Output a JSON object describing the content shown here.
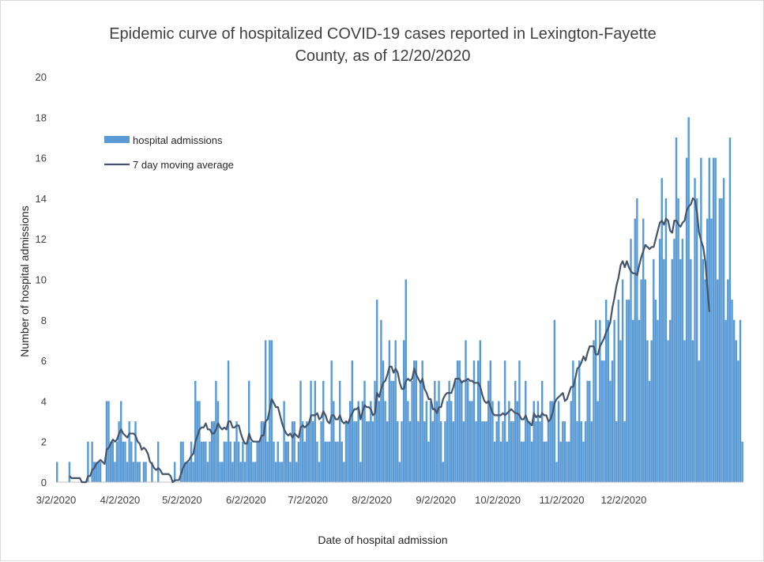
{
  "chart_data": {
    "type": "bar",
    "title_line1": "Epidemic curve of hospitalized COVID-19 cases reported in Lexington-Fayette",
    "title_line2": "County, as of 12/20/2020",
    "xlabel": "Date of hospital admission",
    "ylabel": "Number of hospital admissions",
    "ylim": [
      0,
      20
    ],
    "yticks": [
      "0",
      "2",
      "4",
      "6",
      "8",
      "10",
      "12",
      "14",
      "16",
      "18",
      "20"
    ],
    "xticks": [
      {
        "label": "3/2/2020",
        "day": 0
      },
      {
        "label": "4/2/2020",
        "day": 31
      },
      {
        "label": "5/2/2020",
        "day": 61
      },
      {
        "label": "6/2/2020",
        "day": 92
      },
      {
        "label": "7/2/2020",
        "day": 122
      },
      {
        "label": "8/2/2020",
        "day": 153
      },
      {
        "label": "9/2/2020",
        "day": 184
      },
      {
        "label": "10/2/2020",
        "day": 214
      },
      {
        "label": "11/2/2020",
        "day": 245
      },
      {
        "label": "12/2/2020",
        "day": 275
      }
    ],
    "legend": {
      "position": "top-left",
      "bar_label": "hospital admissions",
      "line_label": "7 day moving average"
    },
    "colors": {
      "bar": "#5b9bd5",
      "line": "#44546a"
    },
    "series": [
      {
        "name": "hospital admissions",
        "values": [
          1,
          0,
          0,
          0,
          0,
          0,
          1,
          0,
          0,
          0,
          0,
          0,
          0,
          0,
          0,
          2,
          0,
          2,
          1,
          1,
          1,
          1,
          0,
          0,
          4,
          4,
          2,
          2,
          1,
          2,
          3,
          4,
          2,
          2,
          1,
          3,
          2,
          1,
          3,
          1,
          1,
          0,
          1,
          1,
          0,
          0,
          1,
          0,
          0,
          2,
          0,
          0,
          0,
          0,
          0,
          0,
          0,
          1,
          0,
          0,
          2,
          2,
          1,
          1,
          1,
          2,
          1,
          5,
          4,
          4,
          2,
          2,
          2,
          1,
          2,
          3,
          3,
          5,
          4,
          1,
          1,
          2,
          2,
          6,
          2,
          1,
          2,
          3,
          2,
          1,
          2,
          1,
          2,
          5,
          2,
          1,
          1,
          2,
          2,
          3,
          3,
          7,
          2,
          7,
          7,
          2,
          1,
          2,
          1,
          1,
          4,
          2,
          2,
          1,
          3,
          3,
          1,
          2,
          5,
          3,
          2,
          3,
          3,
          5,
          3,
          5,
          2,
          1,
          3,
          5,
          2,
          2,
          2,
          6,
          4,
          2,
          2,
          5,
          2,
          1,
          3,
          3,
          4,
          6,
          3,
          3,
          4,
          1,
          4,
          5,
          3,
          3,
          4,
          3,
          5,
          9,
          4,
          8,
          6,
          4,
          3,
          7,
          5,
          5,
          7,
          3,
          1,
          3,
          7,
          10,
          4,
          3,
          5,
          6,
          6,
          3,
          5,
          6,
          3,
          4,
          2,
          4,
          3,
          5,
          4,
          5,
          3,
          1,
          3,
          4,
          5,
          4,
          3,
          5,
          6,
          6,
          5,
          3,
          7,
          5,
          4,
          4,
          6,
          3,
          6,
          7,
          3,
          3,
          3,
          5,
          6,
          4,
          2,
          3,
          4,
          2,
          3,
          6,
          2,
          4,
          3,
          3,
          5,
          4,
          6,
          2,
          2,
          5,
          3,
          3,
          2,
          4,
          3,
          4,
          3,
          5,
          2,
          2,
          3,
          4,
          4,
          8,
          1,
          4,
          2,
          3,
          3,
          2,
          2,
          4,
          6,
          5,
          3,
          6,
          3,
          2,
          3,
          5,
          5,
          3,
          7,
          8,
          4,
          8,
          6,
          6,
          9,
          8,
          5,
          6,
          8,
          3,
          9,
          7,
          10,
          3,
          9,
          9,
          12,
          8,
          13,
          14,
          8,
          10,
          13,
          10,
          7,
          5,
          7,
          11,
          9,
          8,
          12,
          15,
          11,
          14,
          7,
          8,
          11,
          12,
          17,
          14,
          11,
          12,
          7,
          16,
          18,
          11,
          7,
          15,
          14,
          6,
          16,
          11,
          10,
          13,
          16,
          13,
          16,
          16,
          10,
          14,
          14,
          15,
          8,
          10,
          17,
          9,
          8,
          7,
          6,
          8,
          2
        ]
      },
      {
        "name": "7 day moving average",
        "values": [
          null,
          null,
          null,
          null,
          null,
          null,
          0.3,
          0.2,
          0.2,
          0.2,
          0.2,
          0.2,
          0.0,
          0.0,
          0.0,
          0.3,
          0.3,
          0.6,
          0.7,
          0.9,
          1.0,
          1.1,
          1.0,
          0.9,
          1.6,
          1.7,
          1.9,
          2.1,
          2.0,
          2.1,
          2.4,
          2.6,
          2.4,
          2.3,
          2.2,
          2.4,
          2.4,
          2.4,
          2.3,
          2.0,
          1.9,
          1.6,
          1.7,
          1.6,
          1.4,
          1.0,
          0.9,
          0.7,
          0.6,
          0.7,
          0.6,
          0.4,
          0.4,
          0.4,
          0.4,
          0.3,
          0.0,
          0.1,
          0.1,
          0.1,
          0.4,
          0.7,
          0.9,
          1.0,
          1.1,
          1.3,
          1.4,
          2.0,
          2.3,
          2.6,
          2.7,
          2.7,
          2.9,
          2.6,
          2.6,
          2.4,
          2.4,
          2.6,
          2.9,
          2.7,
          2.6,
          2.7,
          2.6,
          3.0,
          3.0,
          2.7,
          2.7,
          2.8,
          2.8,
          2.4,
          2.1,
          1.9,
          1.9,
          2.4,
          2.1,
          2.0,
          2.0,
          2.0,
          2.0,
          2.3,
          2.3,
          3.0,
          3.1,
          3.6,
          4.1,
          3.9,
          3.7,
          3.7,
          3.3,
          2.9,
          2.6,
          2.4,
          2.3,
          2.4,
          2.2,
          2.4,
          2.3,
          2.2,
          2.7,
          2.8,
          2.7,
          2.8,
          2.9,
          3.3,
          3.3,
          3.3,
          3.4,
          3.1,
          3.2,
          3.5,
          3.3,
          3.0,
          2.9,
          3.3,
          3.3,
          3.1,
          3.1,
          3.3,
          3.0,
          2.9,
          3.0,
          2.9,
          3.2,
          3.4,
          3.6,
          3.6,
          3.7,
          3.1,
          3.5,
          3.8,
          3.7,
          3.7,
          3.6,
          3.3,
          3.4,
          4.4,
          4.2,
          4.6,
          4.9,
          5.0,
          5.3,
          5.7,
          5.7,
          5.4,
          5.6,
          5.4,
          4.9,
          4.6,
          4.6,
          5.0,
          5.1,
          5.0,
          5.1,
          5.6,
          5.3,
          5.1,
          4.9,
          5.1,
          4.6,
          4.4,
          4.1,
          4.1,
          3.6,
          3.6,
          3.4,
          3.7,
          3.7,
          4.1,
          4.3,
          4.4,
          4.4,
          4.4,
          4.7,
          5.1,
          5.1,
          5.1,
          4.9,
          5.0,
          5.0,
          5.1,
          5.0,
          5.0,
          4.9,
          4.9,
          4.9,
          4.7,
          4.3,
          4.0,
          3.9,
          4.0,
          3.7,
          3.4,
          3.3,
          3.3,
          3.3,
          3.3,
          3.4,
          3.3,
          3.4,
          3.5,
          3.6,
          3.5,
          3.4,
          3.4,
          3.3,
          3.1,
          3.1,
          3.3,
          3.0,
          2.9,
          2.8,
          3.4,
          3.2,
          3.3,
          3.2,
          3.4,
          3.3,
          3.3,
          3.0,
          3.1,
          3.4,
          3.9,
          4.1,
          4.2,
          4.3,
          4.4,
          4.0,
          4.1,
          4.4,
          4.7,
          4.7,
          5.1,
          5.6,
          5.7,
          5.9,
          6.2,
          6.0,
          6.4,
          6.7,
          6.7,
          6.7,
          6.3,
          6.3,
          6.7,
          6.9,
          7.1,
          7.4,
          7.6,
          7.9,
          8.6,
          9.1,
          9.7,
          10.1,
          10.7,
          10.9,
          10.6,
          10.9,
          10.6,
          10.4,
          10.3,
          10.3,
          10.2,
          10.7,
          11.1,
          11.4,
          11.7,
          11.6,
          11.5,
          11.6,
          11.6,
          12.0,
          12.4,
          12.8,
          12.9,
          12.7,
          13.0,
          12.9,
          12.4,
          12.3,
          12.9,
          12.9,
          12.7,
          12.6,
          12.8,
          12.9,
          13.4,
          13.6,
          13.7,
          14.0,
          13.9,
          13.3,
          12.3,
          11.9,
          11.6,
          10.9,
          9.6,
          8.4
        ]
      }
    ]
  }
}
